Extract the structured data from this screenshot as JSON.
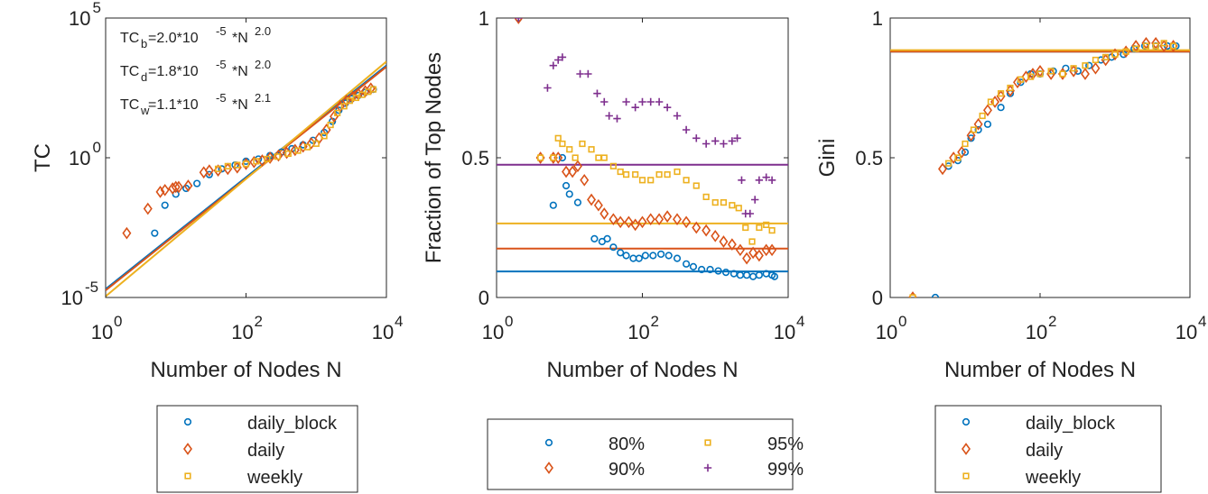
{
  "chart_data": [
    {
      "type": "scatter",
      "xlabel": "Number of Nodes N",
      "ylabel": "TC",
      "x_scale": "log",
      "y_scale": "log",
      "xlim": [
        1,
        10000
      ],
      "ylim": [
        1e-05,
        100000
      ],
      "x_ticks": [
        {
          "v": 1,
          "base": "10",
          "exp": "0"
        },
        {
          "v": 100,
          "base": "10",
          "exp": "2"
        },
        {
          "v": 10000,
          "base": "10",
          "exp": "4"
        }
      ],
      "y_ticks": [
        {
          "v": 1e-05,
          "base": "10",
          "exp": "-5"
        },
        {
          "v": 1,
          "base": "10",
          "exp": "0"
        },
        {
          "v": 100000,
          "base": "10",
          "exp": "5"
        }
      ],
      "annotations": [
        {
          "sub": "b",
          "coef": "=2.0*10",
          "exp1": "-5",
          "mid": "*N",
          "exp2": "2.0"
        },
        {
          "sub": "d",
          "coef": "=1.8*10",
          "exp1": "-5",
          "mid": "*N",
          "exp2": "2.0"
        },
        {
          "sub": "w",
          "coef": "=1.1*10",
          "exp1": "-5",
          "mid": "*N",
          "exp2": "2.1"
        }
      ],
      "annotation_prefix": "TC",
      "series": [
        {
          "name": "daily_block",
          "marker": "circle",
          "color": "#0072BD",
          "fit": {
            "a": 2e-05,
            "b": 2.0
          },
          "x": [
            5,
            7,
            10,
            14,
            20,
            30,
            45,
            70,
            100,
            150,
            220,
            320,
            450,
            650,
            900,
            1300,
            1700,
            2100,
            2600,
            3200,
            4000,
            5000,
            6500
          ],
          "y": [
            0.002,
            0.02,
            0.05,
            0.08,
            0.12,
            0.25,
            0.4,
            0.55,
            0.75,
            0.9,
            1.2,
            1.6,
            2.1,
            2.9,
            4.2,
            8,
            20,
            50,
            90,
            130,
            170,
            220,
            280
          ]
        },
        {
          "name": "daily",
          "marker": "diamond",
          "color": "#D95319",
          "fit": {
            "a": 1.8e-05,
            "b": 2.0
          },
          "x": [
            2,
            4,
            6,
            7,
            9,
            10,
            11,
            15,
            25,
            30,
            40,
            55,
            75,
            100,
            130,
            170,
            220,
            290,
            380,
            500,
            650,
            850,
            1100,
            1400,
            1800,
            2200,
            2700,
            3300,
            4000,
            5000,
            6000
          ],
          "y": [
            0.002,
            0.015,
            0.06,
            0.07,
            0.08,
            0.09,
            0.09,
            0.1,
            0.3,
            0.35,
            0.35,
            0.4,
            0.45,
            0.6,
            0.7,
            0.8,
            1.0,
            1.2,
            1.5,
            1.9,
            2.5,
            3.3,
            5,
            10,
            30,
            70,
            110,
            150,
            190,
            240,
            300
          ]
        },
        {
          "name": "weekly",
          "marker": "square",
          "color": "#EDB120",
          "fit": {
            "a": 1.1e-05,
            "b": 2.1
          },
          "x": [
            40,
            55,
            75,
            100,
            140,
            200,
            280,
            400,
            550,
            750,
            1000,
            1300,
            1600,
            2000,
            2500,
            3000,
            3700,
            4500,
            5500,
            6500
          ],
          "y": [
            0.4,
            0.5,
            0.55,
            0.6,
            0.75,
            0.9,
            1.1,
            1.4,
            1.8,
            2.4,
            3.2,
            6,
            15,
            40,
            70,
            110,
            140,
            180,
            230,
            280
          ]
        }
      ],
      "legend": [
        "daily_block",
        "daily",
        "weekly"
      ]
    },
    {
      "type": "scatter",
      "xlabel": "Number of Nodes N",
      "ylabel": "Fraction of Top Nodes",
      "x_scale": "log",
      "xlim": [
        1,
        10000
      ],
      "ylim": [
        0,
        1
      ],
      "x_ticks": [
        {
          "v": 1,
          "base": "10",
          "exp": "0"
        },
        {
          "v": 100,
          "base": "10",
          "exp": "2"
        },
        {
          "v": 10000,
          "base": "10",
          "exp": "4"
        }
      ],
      "y_ticks": [
        {
          "v": 0,
          "label": "0"
        },
        {
          "v": 0.5,
          "label": "0.5"
        },
        {
          "v": 1,
          "label": "1"
        }
      ],
      "series": [
        {
          "name": "80%",
          "marker": "circle",
          "color": "#0072BD",
          "hline": 0.093,
          "x": [
            2,
            6,
            8,
            9,
            10,
            13,
            22,
            28,
            33,
            40,
            50,
            60,
            75,
            90,
            110,
            140,
            180,
            230,
            300,
            400,
            500,
            650,
            850,
            1100,
            1400,
            1800,
            2200,
            2700,
            3300,
            4000,
            5000,
            6000,
            6500
          ],
          "y": [
            1.0,
            0.33,
            0.5,
            0.4,
            0.37,
            0.34,
            0.21,
            0.2,
            0.21,
            0.18,
            0.16,
            0.15,
            0.14,
            0.14,
            0.15,
            0.15,
            0.155,
            0.15,
            0.14,
            0.12,
            0.11,
            0.1,
            0.1,
            0.095,
            0.09,
            0.085,
            0.08,
            0.08,
            0.075,
            0.08,
            0.085,
            0.08,
            0.075
          ]
        },
        {
          "name": "90%",
          "marker": "diamond",
          "color": "#D95319",
          "hline": 0.175,
          "x": [
            2,
            4,
            6,
            7,
            9,
            11,
            13,
            16,
            20,
            25,
            30,
            40,
            50,
            65,
            80,
            100,
            130,
            170,
            220,
            300,
            400,
            550,
            750,
            1000,
            1300,
            1700,
            2200,
            2700,
            3300,
            4000,
            5000,
            6000
          ],
          "y": [
            1.0,
            0.5,
            0.5,
            0.5,
            0.45,
            0.45,
            0.47,
            0.42,
            0.35,
            0.33,
            0.3,
            0.28,
            0.27,
            0.27,
            0.26,
            0.27,
            0.28,
            0.28,
            0.29,
            0.28,
            0.27,
            0.25,
            0.24,
            0.22,
            0.2,
            0.19,
            0.17,
            0.14,
            0.16,
            0.15,
            0.17,
            0.17
          ]
        },
        {
          "name": "95%",
          "marker": "square",
          "color": "#EDB120",
          "hline": 0.265,
          "x": [
            4,
            6,
            7,
            8,
            10,
            12,
            15,
            20,
            25,
            30,
            40,
            50,
            60,
            80,
            100,
            130,
            170,
            220,
            300,
            400,
            550,
            750,
            1000,
            1300,
            1700,
            2100,
            2600,
            3200,
            4000,
            5000,
            6000
          ],
          "y": [
            0.5,
            0.5,
            0.57,
            0.55,
            0.53,
            0.5,
            0.55,
            0.53,
            0.5,
            0.5,
            0.47,
            0.45,
            0.44,
            0.44,
            0.42,
            0.42,
            0.44,
            0.44,
            0.45,
            0.42,
            0.4,
            0.36,
            0.34,
            0.34,
            0.33,
            0.32,
            0.25,
            0.2,
            0.25,
            0.26,
            0.24
          ]
        },
        {
          "name": "99%",
          "marker": "plus",
          "color": "#7E2F8E",
          "hline": 0.475,
          "x": [
            2,
            5,
            6,
            7,
            8,
            14,
            18,
            24,
            30,
            35,
            45,
            60,
            80,
            100,
            130,
            170,
            220,
            300,
            400,
            550,
            750,
            1000,
            1300,
            1700,
            2000,
            2300,
            2600,
            3000,
            3500,
            4000,
            5000,
            6000
          ],
          "y": [
            1.0,
            0.75,
            0.83,
            0.85,
            0.86,
            0.8,
            0.8,
            0.73,
            0.7,
            0.65,
            0.64,
            0.7,
            0.68,
            0.7,
            0.7,
            0.7,
            0.68,
            0.65,
            0.6,
            0.57,
            0.55,
            0.56,
            0.55,
            0.56,
            0.57,
            0.42,
            0.3,
            0.3,
            0.35,
            0.42,
            0.43,
            0.42
          ]
        }
      ],
      "legend": [
        "80%",
        "90%",
        "95%",
        "99%"
      ]
    },
    {
      "type": "scatter",
      "xlabel": "Number of Nodes N",
      "ylabel": "Gini",
      "x_scale": "log",
      "xlim": [
        1,
        10000
      ],
      "ylim": [
        0,
        1
      ],
      "x_ticks": [
        {
          "v": 1,
          "base": "10",
          "exp": "0"
        },
        {
          "v": 100,
          "base": "10",
          "exp": "2"
        },
        {
          "v": 10000,
          "base": "10",
          "exp": "4"
        }
      ],
      "y_ticks": [
        {
          "v": 0,
          "label": "0"
        },
        {
          "v": 0.5,
          "label": "0.5"
        },
        {
          "v": 1,
          "label": "1"
        }
      ],
      "series": [
        {
          "name": "daily_block",
          "marker": "circle",
          "color": "#0072BD",
          "hline": 0.88,
          "x": [
            4,
            6,
            8,
            10,
            12,
            15,
            20,
            30,
            40,
            55,
            75,
            100,
            150,
            220,
            320,
            450,
            650,
            900,
            1300,
            1800,
            2500,
            3500,
            5000,
            6500
          ],
          "y": [
            0.0,
            0.47,
            0.49,
            0.52,
            0.57,
            0.6,
            0.62,
            0.68,
            0.73,
            0.77,
            0.8,
            0.8,
            0.81,
            0.82,
            0.81,
            0.83,
            0.85,
            0.86,
            0.87,
            0.89,
            0.9,
            0.9,
            0.9,
            0.9
          ]
        },
        {
          "name": "daily",
          "marker": "diamond",
          "color": "#D95319",
          "hline": 0.88,
          "x": [
            2,
            5,
            7,
            9,
            12,
            15,
            20,
            25,
            30,
            40,
            50,
            65,
            80,
            100,
            140,
            200,
            280,
            400,
            550,
            750,
            1000,
            1400,
            1900,
            2600,
            3500,
            4500,
            6000
          ],
          "y": [
            0.0,
            0.46,
            0.5,
            0.52,
            0.58,
            0.62,
            0.67,
            0.7,
            0.72,
            0.74,
            0.77,
            0.79,
            0.8,
            0.81,
            0.8,
            0.8,
            0.81,
            0.8,
            0.82,
            0.85,
            0.87,
            0.88,
            0.9,
            0.91,
            0.91,
            0.9,
            0.9
          ]
        },
        {
          "name": "weekly",
          "marker": "square",
          "color": "#EDB120",
          "hline": 0.885,
          "x": [
            2,
            6,
            8,
            10,
            13,
            17,
            22,
            30,
            40,
            55,
            75,
            100,
            140,
            200,
            280,
            400,
            550,
            750,
            1000,
            1400,
            1900,
            2600,
            3500,
            4500,
            6000
          ],
          "y": [
            0.0,
            0.48,
            0.5,
            0.55,
            0.6,
            0.65,
            0.7,
            0.73,
            0.75,
            0.78,
            0.79,
            0.8,
            0.81,
            0.8,
            0.82,
            0.83,
            0.85,
            0.86,
            0.87,
            0.88,
            0.89,
            0.9,
            0.9,
            0.91,
            0.9
          ]
        }
      ],
      "legend": [
        "daily_block",
        "daily",
        "weekly"
      ]
    }
  ]
}
